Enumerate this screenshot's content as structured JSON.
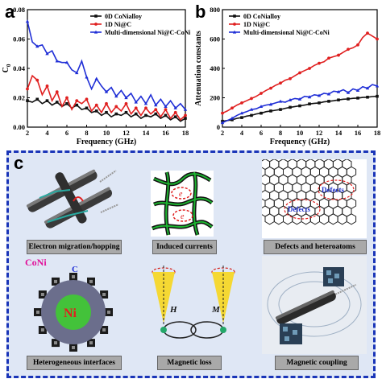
{
  "panel_labels": {
    "a": "a",
    "b": "b",
    "c": "c"
  },
  "chart_data": [
    {
      "type": "line",
      "panel": "a",
      "xlabel": "Frequency (GHz)",
      "ylabel": "C0",
      "ylabel_main": "C",
      "ylabel_sub": "0",
      "xlim": [
        2,
        18
      ],
      "ylim": [
        0,
        0.08
      ],
      "xticks": [
        2,
        4,
        6,
        8,
        10,
        12,
        14,
        16,
        18
      ],
      "yticks": [
        0,
        0.02,
        0.04,
        0.06,
        0.08
      ],
      "ytick_labels": [
        "0.00",
        "0.02",
        "0.04",
        "0.06",
        "0.08"
      ],
      "legend_position": "top-right",
      "x": [
        2,
        2.5,
        3,
        3.5,
        4,
        4.5,
        5,
        5.5,
        6,
        6.5,
        7,
        7.5,
        8,
        8.5,
        9,
        9.5,
        10,
        10.5,
        11,
        11.5,
        12,
        12.5,
        13,
        13.5,
        14,
        14.5,
        15,
        15.5,
        16,
        16.5,
        17,
        17.5,
        18
      ],
      "series": [
        {
          "name": "0D CoNialloy",
          "color": "#111111",
          "marker": "square",
          "values": [
            0.018,
            0.017,
            0.019,
            0.016,
            0.018,
            0.015,
            0.017,
            0.014,
            0.016,
            0.013,
            0.015,
            0.012,
            0.013,
            0.01,
            0.011,
            0.008,
            0.01,
            0.007,
            0.009,
            0.008,
            0.01,
            0.007,
            0.009,
            0.006,
            0.008,
            0.007,
            0.009,
            0.006,
            0.008,
            0.005,
            0.007,
            0.004,
            0.006
          ]
        },
        {
          "name": "1D Ni@C",
          "color": "#e02020",
          "marker": "circle",
          "values": [
            0.026,
            0.035,
            0.032,
            0.022,
            0.028,
            0.018,
            0.024,
            0.014,
            0.02,
            0.012,
            0.018,
            0.016,
            0.019,
            0.011,
            0.015,
            0.01,
            0.016,
            0.01,
            0.014,
            0.011,
            0.016,
            0.009,
            0.013,
            0.008,
            0.013,
            0.009,
            0.012,
            0.007,
            0.012,
            0.006,
            0.01,
            0.005,
            0.008
          ]
        },
        {
          "name": "Multi-dimensional Ni@C-CoNi",
          "color": "#1f2ed6",
          "marker": "triangle",
          "values": [
            0.072,
            0.058,
            0.055,
            0.056,
            0.05,
            0.052,
            0.045,
            0.044,
            0.044,
            0.039,
            0.037,
            0.045,
            0.034,
            0.026,
            0.033,
            0.028,
            0.024,
            0.027,
            0.021,
            0.025,
            0.02,
            0.023,
            0.017,
            0.021,
            0.016,
            0.022,
            0.015,
            0.019,
            0.014,
            0.018,
            0.013,
            0.016,
            0.012
          ]
        }
      ]
    },
    {
      "type": "line",
      "panel": "b",
      "xlabel": "Frequency (GHz)",
      "ylabel": "Attenuation constants",
      "xlim": [
        2,
        18
      ],
      "ylim": [
        0,
        800
      ],
      "xticks": [
        2,
        4,
        6,
        8,
        10,
        12,
        14,
        16,
        18
      ],
      "yticks": [
        0,
        200,
        400,
        600,
        800
      ],
      "legend_position": "top-left",
      "x": [
        2,
        2.5,
        3,
        3.5,
        4,
        4.5,
        5,
        5.5,
        6,
        6.5,
        7,
        7.5,
        8,
        8.5,
        9,
        9.5,
        10,
        10.5,
        11,
        11.5,
        12,
        12.5,
        13,
        13.5,
        14,
        14.5,
        15,
        15.5,
        16,
        16.5,
        17,
        17.5,
        18
      ],
      "series": [
        {
          "name": "0D CoNialloy",
          "color": "#111111",
          "marker": "square",
          "values": [
            40,
            45,
            50,
            60,
            65,
            75,
            80,
            90,
            95,
            105,
            110,
            115,
            120,
            128,
            135,
            140,
            145,
            150,
            158,
            162,
            165,
            172,
            176,
            180,
            185,
            190,
            192,
            196,
            198,
            202,
            204,
            208,
            210
          ]
        },
        {
          "name": "1D Ni@C",
          "color": "#e02020",
          "marker": "circle",
          "values": [
            95,
            110,
            130,
            150,
            165,
            180,
            195,
            210,
            230,
            250,
            265,
            285,
            300,
            320,
            330,
            350,
            370,
            385,
            400,
            420,
            435,
            445,
            470,
            480,
            490,
            510,
            530,
            540,
            560,
            610,
            640,
            620,
            600
          ]
        },
        {
          "name": "Multi-dimensional Ni@C-CoNi",
          "color": "#1f2ed6",
          "marker": "triangle",
          "values": [
            30,
            45,
            60,
            80,
            95,
            105,
            120,
            125,
            140,
            150,
            155,
            165,
            175,
            170,
            185,
            195,
            190,
            210,
            205,
            220,
            215,
            230,
            225,
            245,
            240,
            255,
            235,
            260,
            250,
            275,
            265,
            290,
            280
          ]
        }
      ]
    }
  ],
  "panel_c": {
    "captions": {
      "electron_migration": "Electron migration/hopping",
      "induced_currents": "Induced currents",
      "defects_heteroatoms": "Defects and heteroatoms",
      "heterogeneous_interfaces": "Heterogeneous interfaces",
      "magnetic_loss": "Magnetic loss",
      "magnetic_coupling": "Magnetic coupling"
    },
    "labels": {
      "electron": "e",
      "defects": "Defects",
      "coni": "CoNi",
      "c": "C",
      "ni": "Ni",
      "h": "H",
      "m": "M"
    }
  }
}
